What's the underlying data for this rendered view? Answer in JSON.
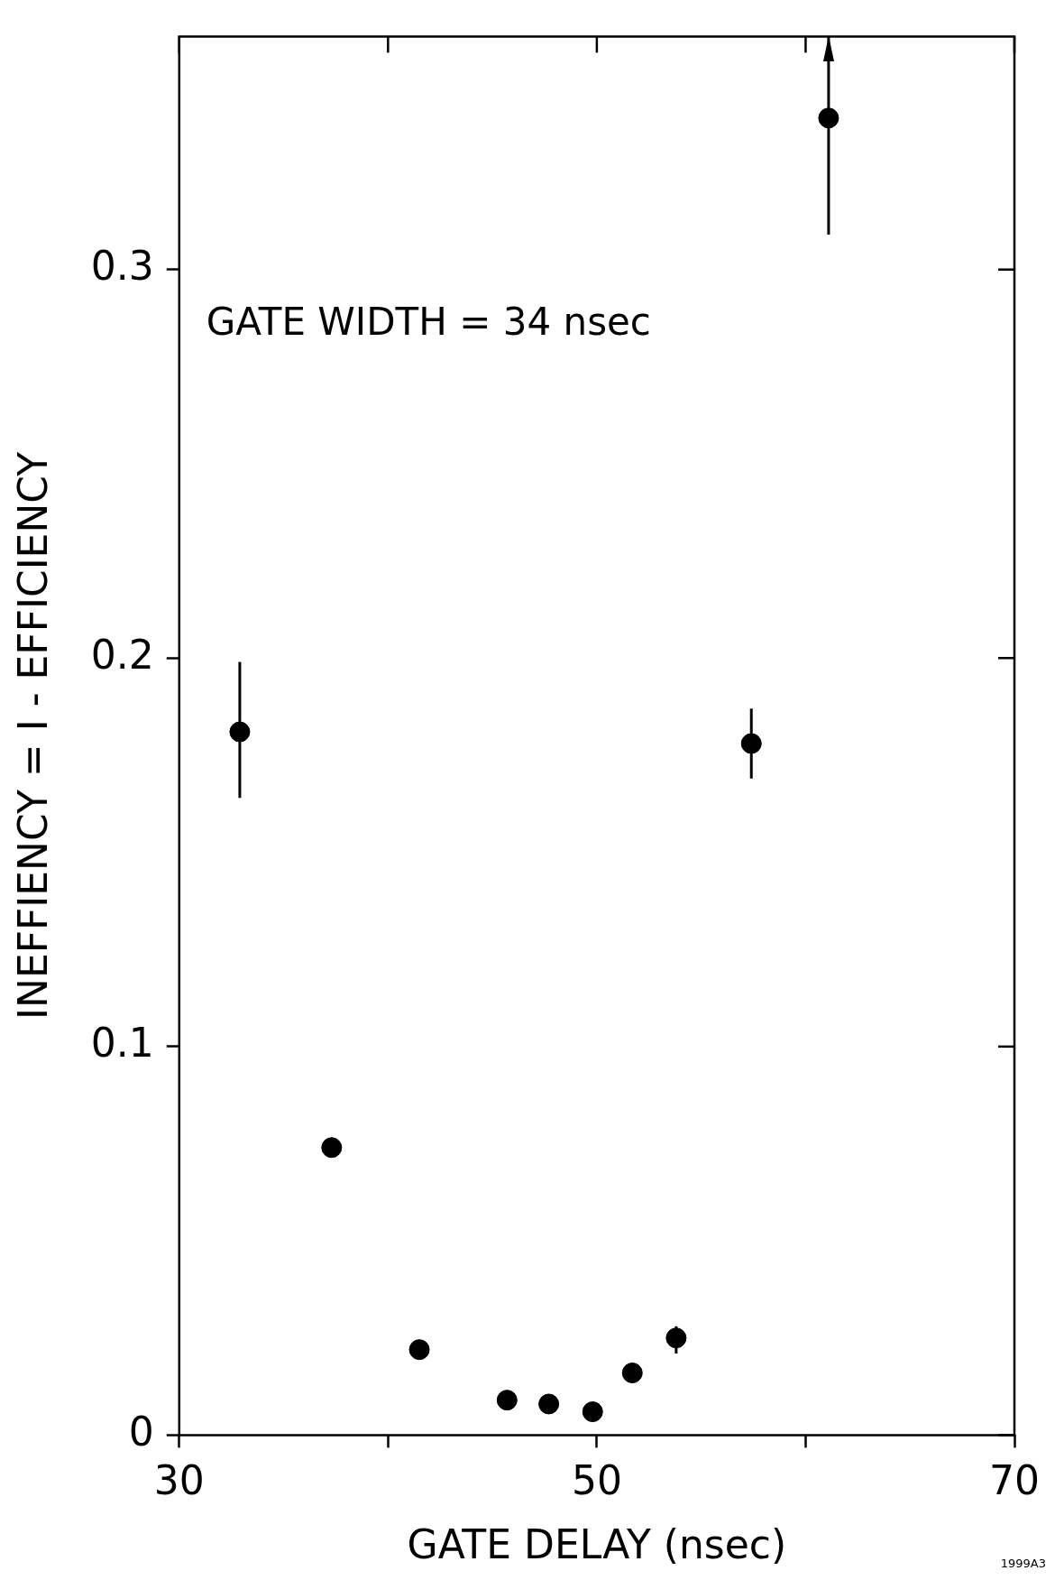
{
  "chart_data": {
    "type": "scatter",
    "xlabel": "GATE DELAY (nsec)",
    "ylabel": "INEFFIENCY = I - EFFICIENCY",
    "x": [
      32.9,
      37.3,
      41.5,
      45.7,
      47.7,
      49.8,
      51.7,
      53.8,
      57.4,
      61.1
    ],
    "series": [
      {
        "color": "#000000",
        "values": [
          0.181,
          0.074,
          0.022,
          0.009,
          0.008,
          0.006,
          0.016,
          0.025,
          0.178,
          0.339
        ],
        "errors": [
          [
            0.164,
            0.199
          ],
          [
            0.072,
            0.076
          ],
          null,
          null,
          null,
          null,
          null,
          [
            0.021,
            0.028
          ],
          [
            0.169,
            0.187
          ],
          [
            0.309,
            0.36
          ]
        ]
      }
    ],
    "xlim": [
      30,
      70
    ],
    "ylim": [
      0,
      0.36
    ],
    "xticks": [
      30,
      {
        "value": 40,
        "label": null
      },
      50,
      {
        "value": 60,
        "label": null
      },
      70
    ],
    "yticks": [
      0,
      0.1,
      0.2,
      0.3
    ],
    "marker": "circle",
    "grid": false,
    "legend": false,
    "annotations": [
      "GATE WIDTH = 34 nsec",
      "1999A3"
    ]
  }
}
